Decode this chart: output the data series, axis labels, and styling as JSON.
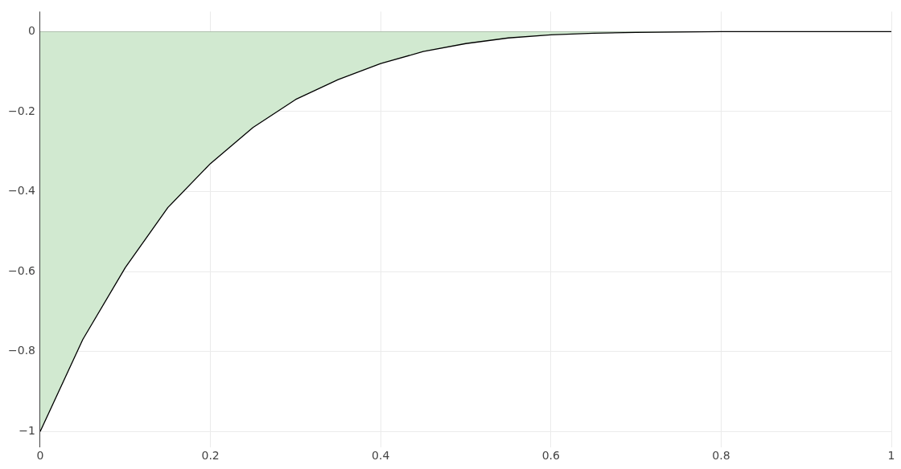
{
  "chart_data": {
    "type": "area",
    "x": [
      0,
      0.05,
      0.1,
      0.15,
      0.2,
      0.25,
      0.3,
      0.35,
      0.4,
      0.45,
      0.5,
      0.55,
      0.6,
      0.65,
      0.7,
      0.75,
      0.8,
      0.85,
      0.9,
      0.95,
      1
    ],
    "series": [
      {
        "color": "#d1e9d0",
        "values": [
          -1,
          -0.77,
          -0.59,
          -0.44,
          -0.33,
          -0.24,
          -0.17,
          -0.12,
          -0.08,
          -0.05,
          -0.03,
          -0.016,
          -0.008,
          -0.004,
          -0.002,
          -0.001,
          0,
          0,
          0,
          0,
          0
        ]
      }
    ],
    "xlim": [
      0,
      1
    ],
    "ylim": [
      -1.04,
      0.05
    ],
    "xticks": [
      0,
      0.2,
      0.4,
      0.6,
      0.8,
      1
    ],
    "yticks": [
      {
        "value": -1,
        "label": "−1"
      },
      {
        "value": -0.8,
        "label": "−0.8"
      },
      {
        "value": -0.6,
        "label": "−0.6"
      },
      {
        "value": -0.4,
        "label": "−0.4"
      },
      {
        "value": -0.2,
        "label": "−0.2"
      },
      0
    ],
    "grid": true,
    "legend": false,
    "marker": "none",
    "line_style": "solid"
  }
}
